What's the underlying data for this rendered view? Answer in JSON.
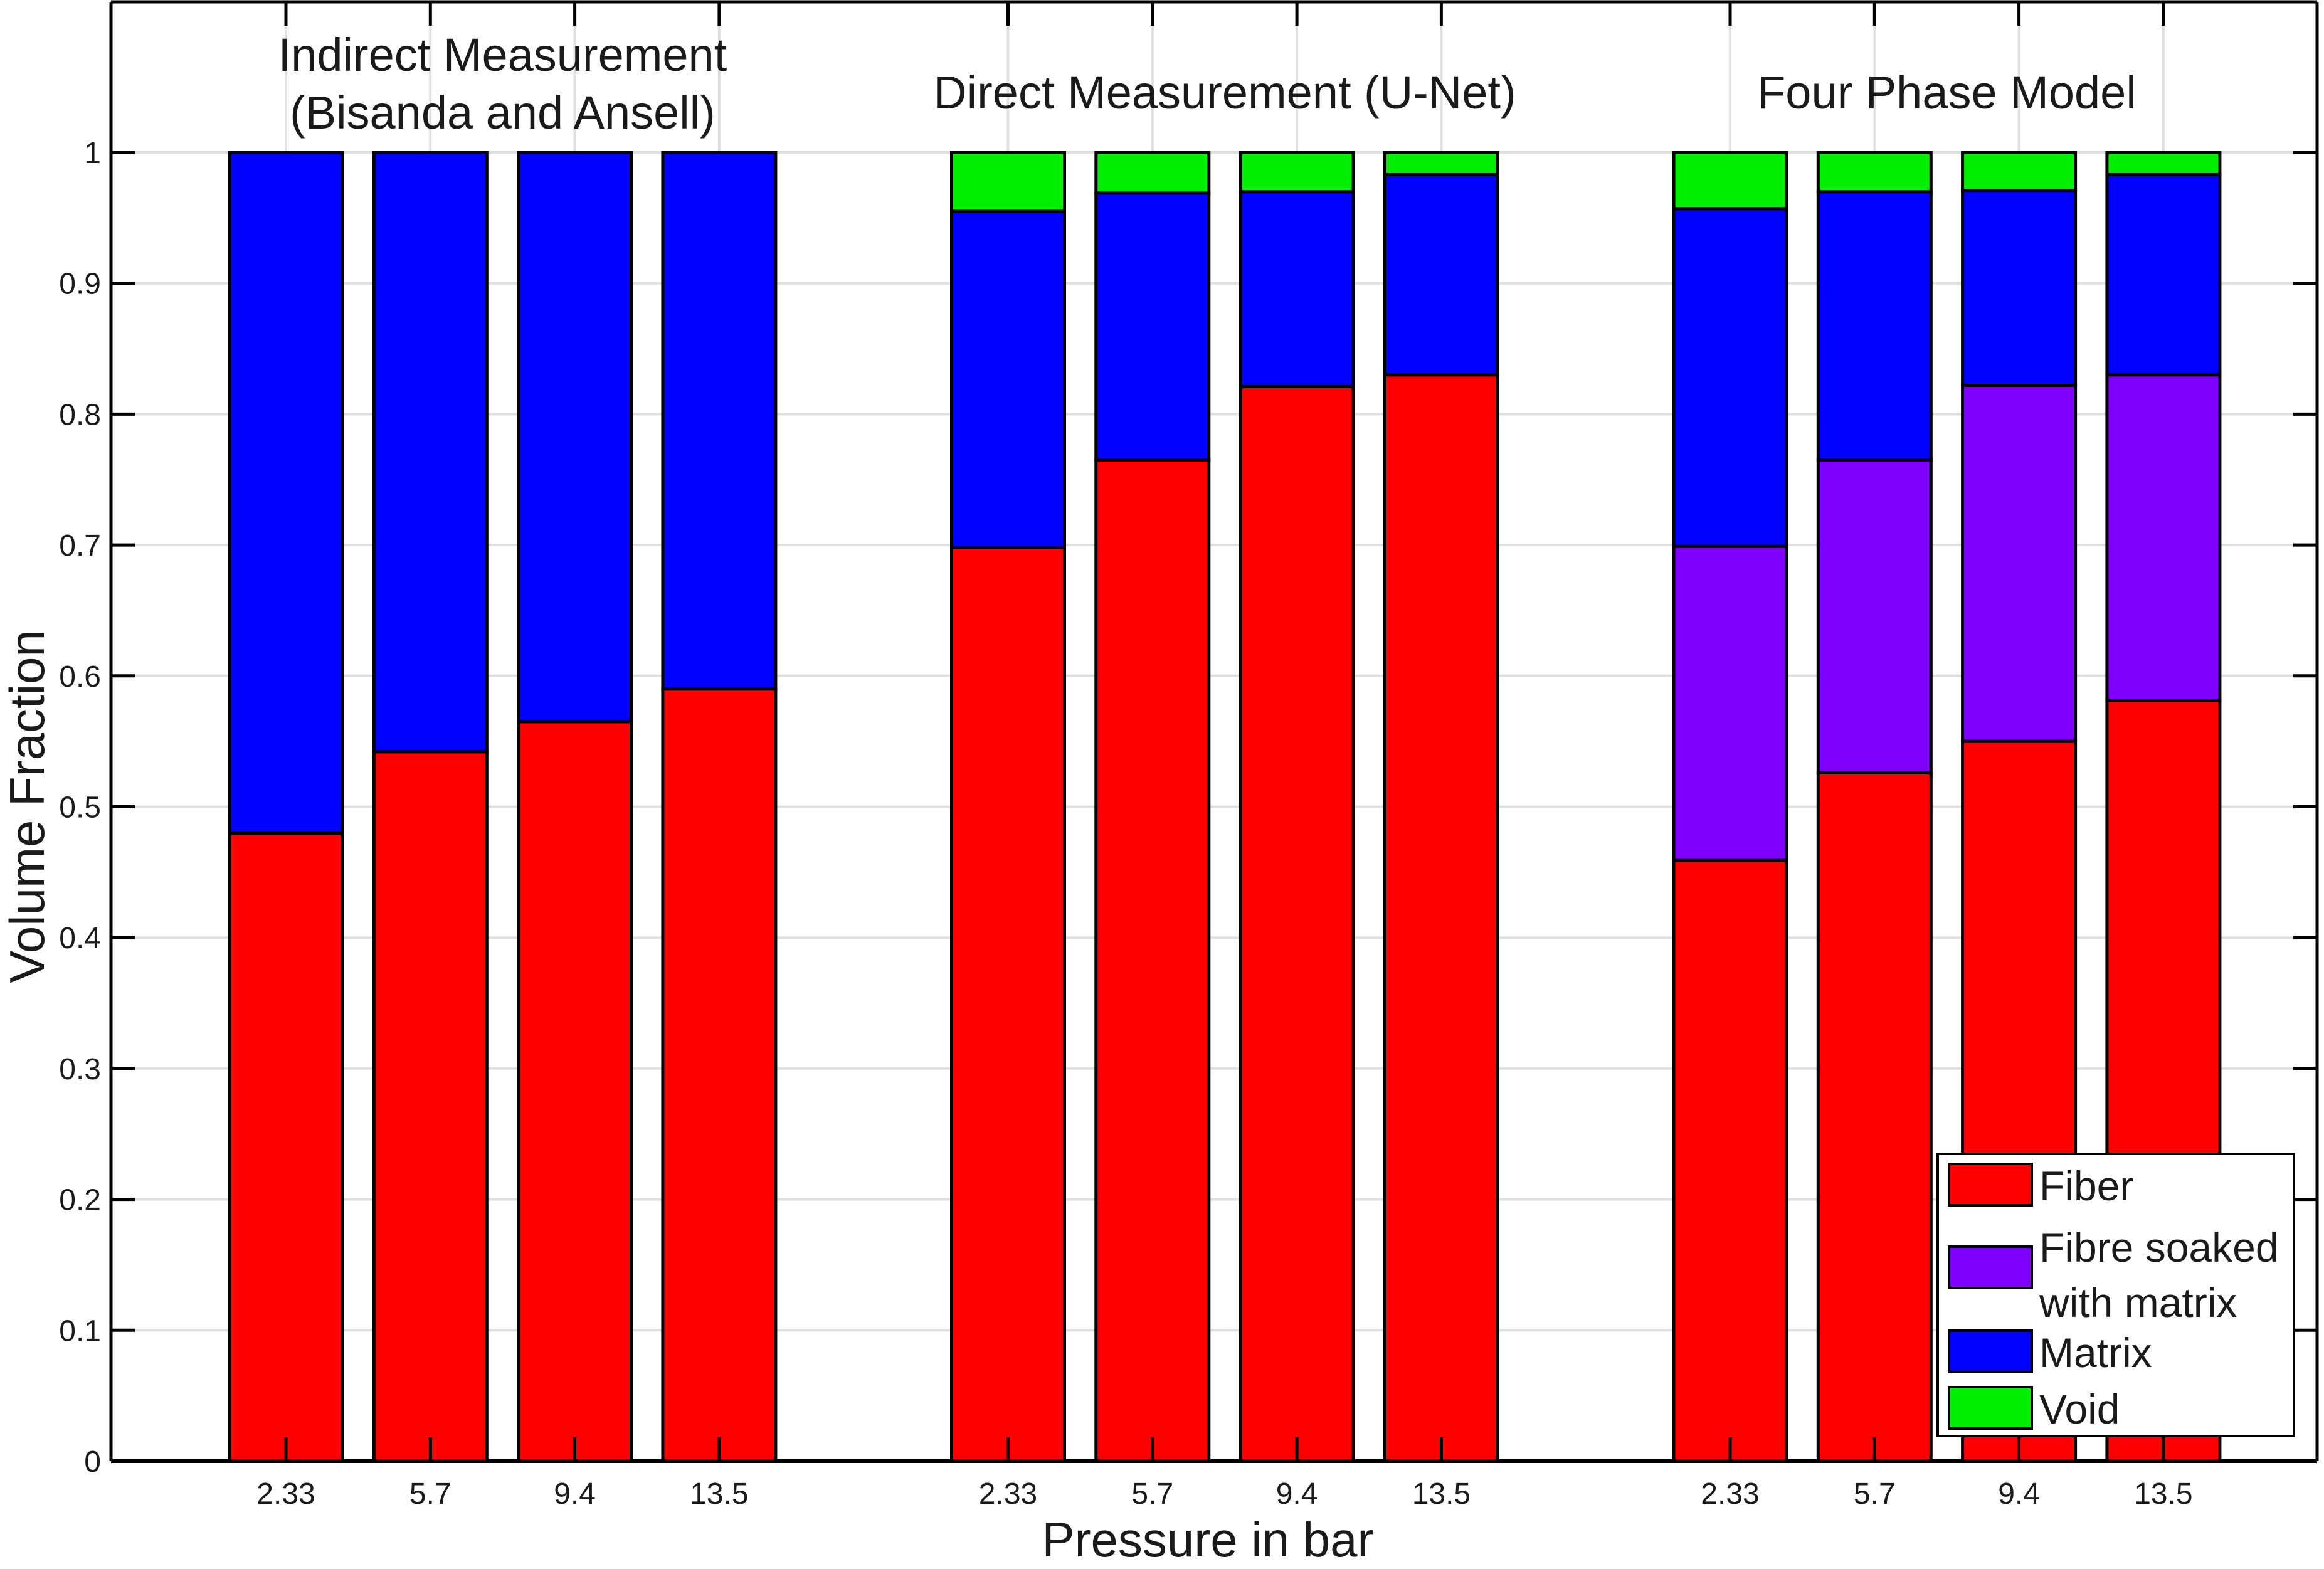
{
  "chart_data": {
    "type": "bar",
    "stacked": true,
    "xlabel": "Pressure in bar",
    "ylabel": "Volume Fraction",
    "ylim": [
      0,
      1
    ],
    "grid": true,
    "ytick_labels": [
      "0",
      "0.1",
      "0.2",
      "0.3",
      "0.4",
      "0.5",
      "0.6",
      "0.7",
      "0.8",
      "0.9",
      "1"
    ],
    "ytick_values": [
      0,
      0.1,
      0.2,
      0.3,
      0.4,
      0.5,
      0.6,
      0.7,
      0.8,
      0.9,
      1
    ],
    "categories": [
      "2.33",
      "5.7",
      "9.4",
      "13.5"
    ],
    "series_order": [
      "fiber",
      "soaked",
      "matrix",
      "void"
    ],
    "series_colors": {
      "fiber": "#FF0000",
      "soaked": "#8000FF",
      "matrix": "#0000FF",
      "void": "#00EE00"
    },
    "legend": {
      "position": "lower right",
      "entries": [
        {
          "label": "Fiber",
          "lines": [
            "Fiber"
          ],
          "series": "fiber",
          "color": "#FF0000"
        },
        {
          "label": "Fibre soaked with matrix",
          "lines": [
            "Fibre soaked",
            "with matrix"
          ],
          "series": "soaked",
          "color": "#8000FF"
        },
        {
          "label": "Matrix",
          "lines": [
            "Matrix"
          ],
          "series": "matrix",
          "color": "#0000FF"
        },
        {
          "label": "Void",
          "lines": [
            "Void"
          ],
          "series": "void",
          "color": "#00EE00"
        }
      ]
    },
    "groups": [
      {
        "title_lines": [
          "Indirect Measurement",
          "(Bisanda and Ansell)"
        ],
        "categories": [
          "2.33",
          "5.7",
          "9.4",
          "13.5"
        ],
        "series": {
          "fiber": [
            0.48,
            0.542,
            0.565,
            0.59
          ],
          "soaked": [
            0,
            0,
            0,
            0
          ],
          "matrix": [
            0.52,
            0.458,
            0.435,
            0.41
          ],
          "void": [
            0,
            0,
            0,
            0
          ]
        }
      },
      {
        "title_lines": [
          "Direct Measurement (U-Net)"
        ],
        "categories": [
          "2.33",
          "5.7",
          "9.4",
          "13.5"
        ],
        "series": {
          "fiber": [
            0.698,
            0.765,
            0.821,
            0.83
          ],
          "soaked": [
            0,
            0,
            0,
            0
          ],
          "matrix": [
            0.257,
            0.204,
            0.149,
            0.153
          ],
          "void": [
            0.045,
            0.031,
            0.03,
            0.017
          ]
        }
      },
      {
        "title_lines": [
          "Four Phase Model"
        ],
        "categories": [
          "2.33",
          "5.7",
          "9.4",
          "13.5"
        ],
        "series": {
          "fiber": [
            0.459,
            0.526,
            0.55,
            0.581
          ],
          "soaked": [
            0.24,
            0.239,
            0.272,
            0.249
          ],
          "matrix": [
            0.258,
            0.205,
            0.149,
            0.153
          ],
          "void": [
            0.043,
            0.03,
            0.029,
            0.017
          ]
        }
      }
    ]
  }
}
